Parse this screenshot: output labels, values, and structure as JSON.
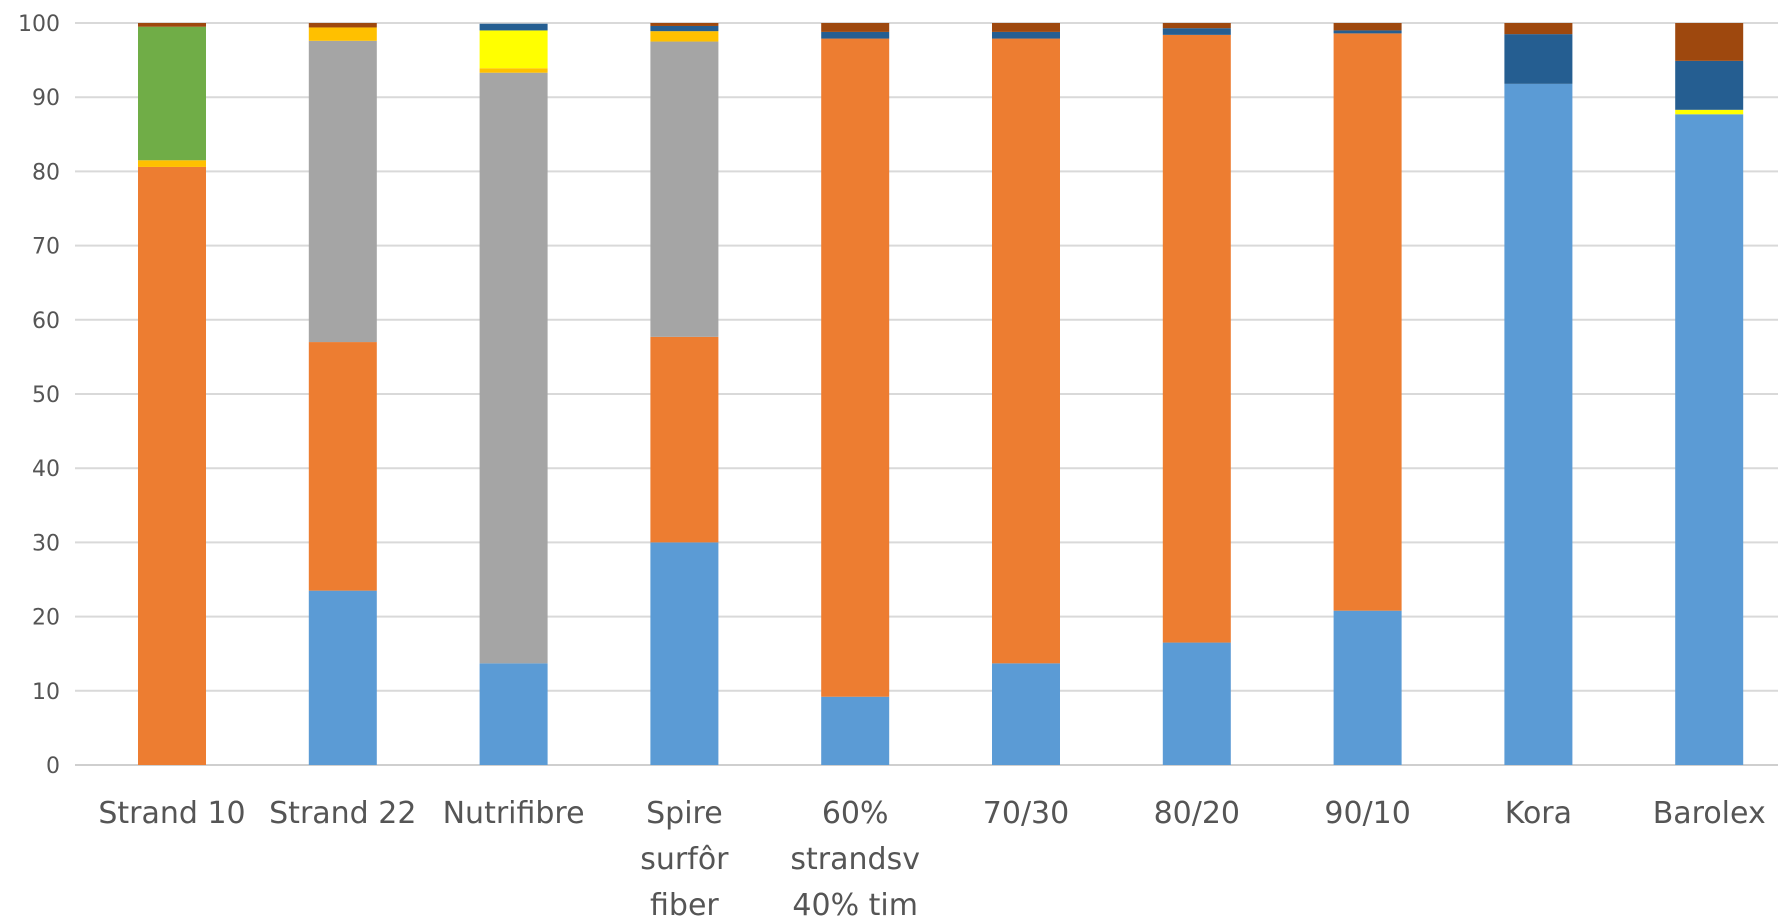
{
  "chart_data": {
    "type": "bar",
    "stacked": true,
    "ylim": [
      0,
      100
    ],
    "yticks": [
      0,
      10,
      20,
      30,
      40,
      50,
      60,
      70,
      80,
      90,
      100
    ],
    "grid": true,
    "legend": "none",
    "categories": [
      [
        "Strand 10"
      ],
      [
        "Strand 22"
      ],
      [
        "Nutrifibre"
      ],
      [
        "Spire",
        "surfôr",
        "fiber"
      ],
      [
        "60%",
        "strandsv",
        "40% tim"
      ],
      [
        "70/30"
      ],
      [
        "80/20"
      ],
      [
        "90/10"
      ],
      [
        "Kora"
      ],
      [
        "Barolex"
      ]
    ],
    "series": [
      {
        "color": "#5B9BD5",
        "values": [
          0,
          23.5,
          13.7,
          30,
          9.2,
          13.7,
          16.5,
          20.8,
          91.8,
          87.7
        ]
      },
      {
        "color": "#ED7D31",
        "values": [
          80.6,
          33.5,
          0,
          27.7,
          88.7,
          84.2,
          81.9,
          77.8,
          0,
          0
        ]
      },
      {
        "color": "#A5A5A5",
        "values": [
          0,
          40.6,
          79.6,
          39.8,
          0,
          0,
          0,
          0,
          0,
          0
        ]
      },
      {
        "color": "#FFC000",
        "values": [
          0.9,
          1.8,
          0.6,
          1.4,
          0,
          0,
          0,
          0,
          0,
          0
        ]
      },
      {
        "color": "#FFFF00",
        "values": [
          0,
          0,
          5.1,
          0,
          0,
          0,
          0,
          0,
          0,
          0.6
        ]
      },
      {
        "color": "#70AD47",
        "values": [
          18.0,
          0,
          0,
          0,
          0,
          0,
          0,
          0,
          0,
          0
        ]
      },
      {
        "color": "#255E91",
        "values": [
          0,
          0,
          0.9,
          0.7,
          0.9,
          0.9,
          0.9,
          0.4,
          6.7,
          6.6
        ]
      },
      {
        "color": "#9E480E",
        "values": [
          0.5,
          0.6,
          0,
          0.4,
          1.2,
          1.2,
          0.7,
          1.0,
          1.5,
          5.1
        ]
      }
    ]
  }
}
